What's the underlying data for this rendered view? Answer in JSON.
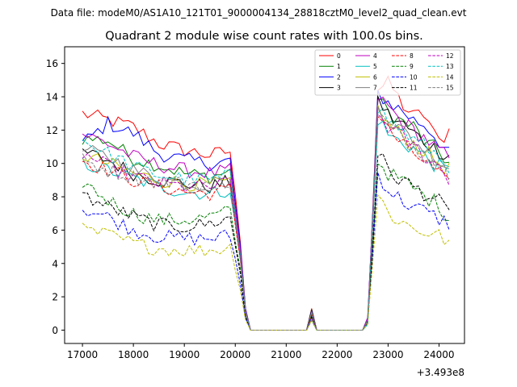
{
  "figure": {
    "suptitle": "Data file: modeM0/AS1A10_121T01_9000004134_28818cztM0_level2_quad_clean.evt",
    "title": "Quadrant 2 module wise count rates with 100.0s bins.",
    "x_offset_label": "+3.493e8"
  },
  "chart_data": {
    "type": "line",
    "title": "Quadrant 2 module wise count rates with 100.0s bins.",
    "xlabel": "",
    "ylabel": "",
    "x_offset": 349300000,
    "xlim": [
      16650,
      24500
    ],
    "ylim": [
      -0.8,
      17.0
    ],
    "xticks": [
      17000,
      18000,
      19000,
      20000,
      21000,
      22000,
      23000,
      24000
    ],
    "yticks": [
      0,
      2,
      4,
      6,
      8,
      10,
      12,
      14,
      16
    ],
    "legend_position": "top-right",
    "bin_seconds": 100,
    "x_range": [
      17000,
      24200
    ],
    "gap": {
      "fall_start": 20000,
      "zero_start": 20300,
      "spike_x": 21500,
      "spike_value": 1.3,
      "rise_start": 22600,
      "rise_peak": 22800
    },
    "series": [
      {
        "name": "0",
        "color": "#ff0000",
        "dash": "solid",
        "before": [
          13.0,
          12.6,
          12.2,
          11.2,
          10.8,
          10.5,
          10.8
        ],
        "after": [
          14.5,
          14.8,
          13.6,
          12.8,
          13.0,
          11.2,
          12.0
        ]
      },
      {
        "name": "1",
        "color": "#008000",
        "dash": "solid",
        "before": [
          11.5,
          11.4,
          10.3,
          9.9,
          9.4,
          9.2,
          9.6
        ],
        "after": [
          13.8,
          13.0,
          12.5,
          12.2,
          11.2,
          10.8,
          10.0
        ]
      },
      {
        "name": "2",
        "color": "#0000ff",
        "dash": "solid",
        "before": [
          11.2,
          12.4,
          11.8,
          10.6,
          10.2,
          10.0,
          10.2
        ],
        "after": [
          14.2,
          13.6,
          13.2,
          12.6,
          12.3,
          11.5,
          10.5
        ]
      },
      {
        "name": "3",
        "color": "#000000",
        "dash": "solid",
        "before": [
          10.7,
          10.2,
          9.4,
          9.0,
          8.8,
          8.6,
          9.0
        ],
        "after": [
          13.8,
          12.8,
          12.4,
          11.8,
          11.3,
          10.8,
          10.5
        ]
      },
      {
        "name": "4",
        "color": "#bf00bf",
        "dash": "solid",
        "before": [
          11.8,
          11.2,
          10.4,
          9.9,
          9.6,
          9.4,
          9.6
        ],
        "after": [
          14.0,
          13.3,
          12.5,
          12.0,
          11.5,
          10.8,
          10.3
        ]
      },
      {
        "name": "5",
        "color": "#00bfbf",
        "dash": "solid",
        "before": [
          10.0,
          9.6,
          9.1,
          8.6,
          8.3,
          8.2,
          8.5
        ],
        "after": [
          12.7,
          11.6,
          11.3,
          10.9,
          10.4,
          9.8,
          9.5
        ]
      },
      {
        "name": "6",
        "color": "#bfbf00",
        "dash": "solid",
        "before": [
          10.5,
          10.0,
          9.4,
          9.0,
          8.8,
          8.7,
          8.9
        ],
        "after": [
          13.2,
          12.2,
          11.7,
          11.2,
          10.7,
          10.1,
          9.6
        ]
      },
      {
        "name": "7",
        "color": "#808080",
        "dash": "solid",
        "before": [
          10.8,
          10.4,
          9.6,
          9.1,
          8.8,
          8.7,
          9.0
        ],
        "after": [
          13.5,
          12.5,
          12.0,
          11.4,
          10.8,
          10.2,
          9.8
        ]
      },
      {
        "name": "8",
        "color": "#ff0000",
        "dash": "dashed",
        "before": [
          10.2,
          9.6,
          9.0,
          8.6,
          8.3,
          8.2,
          8.5
        ],
        "after": [
          13.0,
          11.9,
          11.2,
          10.6,
          10.1,
          9.4,
          8.6
        ]
      },
      {
        "name": "9",
        "color": "#008000",
        "dash": "dashed",
        "before": [
          8.9,
          7.8,
          7.0,
          6.6,
          6.6,
          6.8,
          7.2
        ],
        "after": [
          10.2,
          9.3,
          9.0,
          8.5,
          8.0,
          7.6,
          6.7
        ]
      },
      {
        "name": "10",
        "color": "#0000ff",
        "dash": "dashed",
        "before": [
          7.3,
          6.8,
          6.0,
          5.6,
          5.5,
          5.5,
          5.7
        ],
        "after": [
          9.4,
          8.3,
          7.8,
          7.4,
          7.1,
          6.7,
          6.4
        ]
      },
      {
        "name": "11",
        "color": "#000000",
        "dash": "dashed",
        "before": [
          8.1,
          7.4,
          6.8,
          6.3,
          6.2,
          6.4,
          6.8
        ],
        "after": [
          10.7,
          9.4,
          9.0,
          8.6,
          8.2,
          7.8,
          6.9
        ]
      },
      {
        "name": "12",
        "color": "#bf00bf",
        "dash": "dashed",
        "before": [
          10.6,
          9.8,
          9.2,
          8.8,
          8.6,
          8.6,
          8.9
        ],
        "after": [
          13.0,
          12.1,
          11.6,
          11.0,
          10.4,
          9.9,
          9.1
        ]
      },
      {
        "name": "13",
        "color": "#00bfbf",
        "dash": "dashed",
        "before": [
          11.4,
          10.6,
          9.8,
          9.3,
          9.1,
          9.0,
          9.3
        ],
        "after": [
          13.4,
          12.5,
          12.0,
          11.4,
          11.0,
          10.5,
          9.9
        ]
      },
      {
        "name": "14",
        "color": "#bfbf00",
        "dash": "dashed",
        "before": [
          6.0,
          5.7,
          5.2,
          4.9,
          4.8,
          4.8,
          5.0
        ],
        "after": [
          8.1,
          6.9,
          6.5,
          6.1,
          5.9,
          5.7,
          5.3
        ]
      },
      {
        "name": "15",
        "color": "#808080",
        "dash": "dashed",
        "before": [
          10.2,
          9.6,
          9.2,
          8.9,
          8.8,
          8.8,
          9.0
        ],
        "after": [
          13.0,
          12.2,
          11.6,
          11.0,
          10.6,
          10.1,
          9.4
        ]
      }
    ]
  }
}
